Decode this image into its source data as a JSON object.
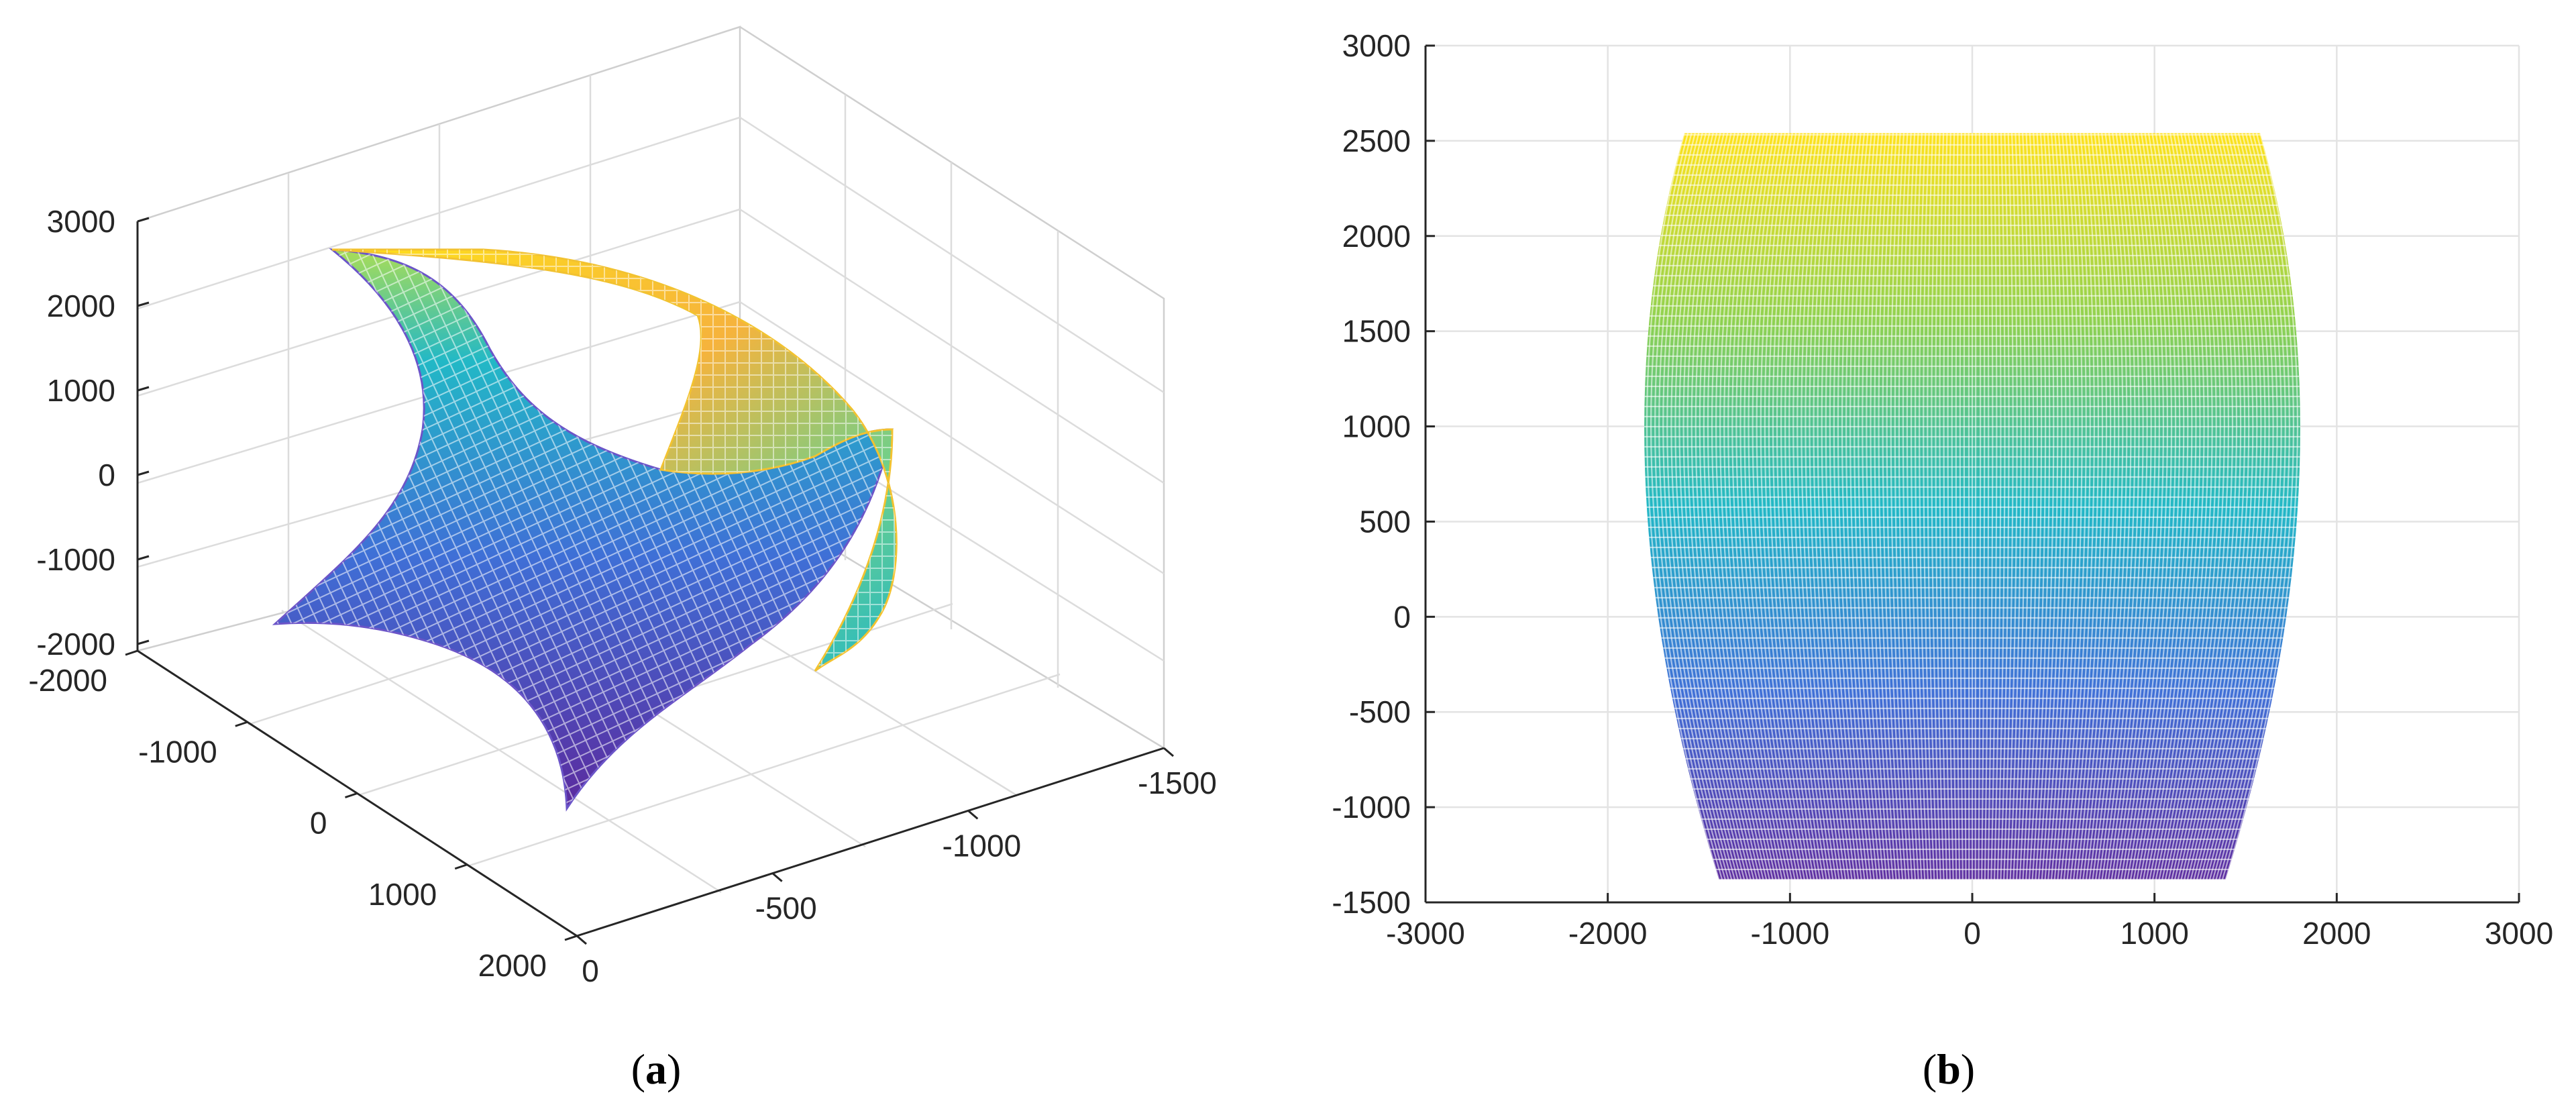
{
  "chart_data": [
    {
      "type": "surface",
      "panel_label": "a",
      "view": "3d",
      "grid": true,
      "axes": {
        "x": {
          "range": [
            -2000,
            2000
          ],
          "ticks": [
            "-2000",
            "-1000",
            "0",
            "1000",
            "2000"
          ]
        },
        "y": {
          "range": [
            0,
            -1500
          ],
          "ticks": [
            "0",
            "-500",
            "-1000",
            "-1500"
          ]
        },
        "z": {
          "range": [
            -2000,
            3000
          ],
          "ticks": [
            "-2000",
            "-1000",
            "0",
            "1000",
            "2000",
            "3000"
          ]
        }
      },
      "colormap": [
        "#440154",
        "#3b528b",
        "#21918c",
        "#5ec962",
        "#fde725"
      ]
    },
    {
      "type": "surface",
      "panel_label": "b",
      "view": "top",
      "grid": true,
      "axes": {
        "x": {
          "range": [
            -3000,
            3000
          ],
          "ticks": [
            "-3000",
            "-2000",
            "-1000",
            "0",
            "1000",
            "2000",
            "3000"
          ]
        },
        "y": {
          "range": [
            -1500,
            3000
          ],
          "ticks": [
            "-1500",
            "-1000",
            "-500",
            "0",
            "500",
            "1000",
            "1500",
            "2000",
            "2500",
            "3000"
          ]
        }
      },
      "surface_extent": {
        "y_range": [
          -1380,
          2540
        ],
        "top_half_width": 1580,
        "bottom_half_width": 1390,
        "max_half_width": 2040
      },
      "colormap": [
        "#440154",
        "#3b528b",
        "#21918c",
        "#5ec962",
        "#fde725"
      ]
    }
  ],
  "captions": {
    "a": "a",
    "b": "b"
  }
}
